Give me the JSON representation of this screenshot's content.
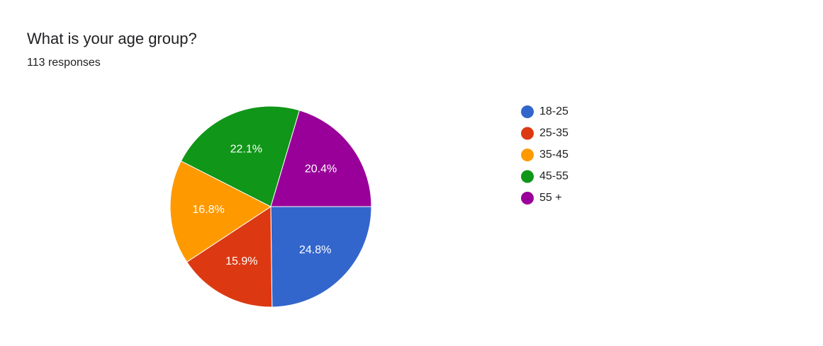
{
  "chart_data": {
    "type": "pie",
    "title": "What is your age group?",
    "subtitle": "113 responses",
    "categories": [
      "18-25",
      "25-35",
      "35-45",
      "45-55",
      "55 +"
    ],
    "values": [
      24.8,
      15.9,
      16.8,
      22.1,
      20.4
    ],
    "value_labels": [
      "24.8%",
      "15.9%",
      "16.8%",
      "22.1%",
      "20.4%"
    ],
    "colors": [
      "#3366cc",
      "#dc3912",
      "#ff9900",
      "#109618",
      "#990099"
    ],
    "legend": "right"
  }
}
